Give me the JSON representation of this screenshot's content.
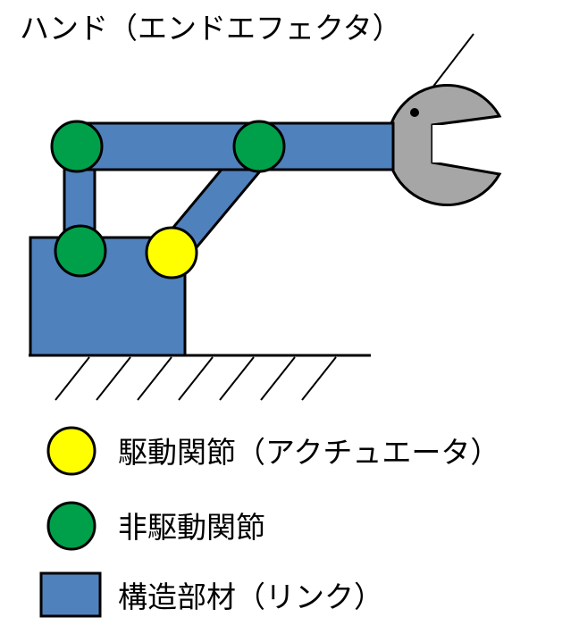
{
  "title_label": "ハンド（エンドエフェクタ）",
  "legend": {
    "actuator_joint": "駆動関節（アクチュエータ）",
    "passive_joint": "非駆動関節",
    "structural_member": "構造部材（リンク）"
  },
  "colors": {
    "link_fill": "#4f81bd",
    "passive_joint": "#00a04a",
    "actuator_joint": "#ffff00",
    "hand_fill": "#a6a6a6",
    "stroke": "#000000"
  }
}
